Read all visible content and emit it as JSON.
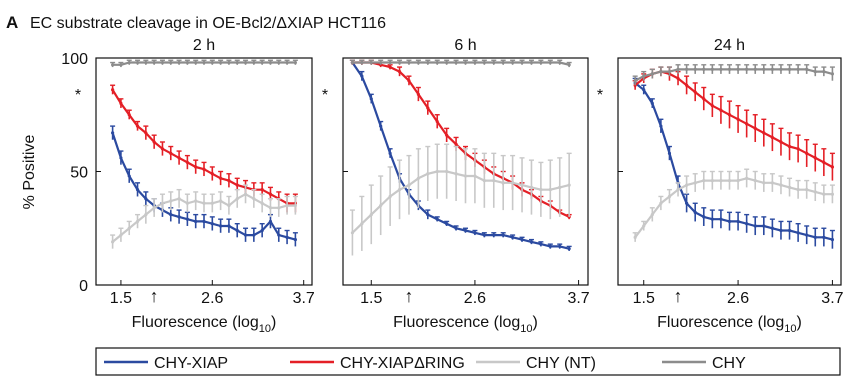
{
  "figure": {
    "panel_letter": "A",
    "title": "EC substrate cleavage in OE-Bcl2/ΔXIAP HCT116",
    "ylabel": "% Positive",
    "xlabel_main": "Fluorescence (log",
    "xlabel_sub": "10",
    "xlabel_close": ")",
    "asterisk": "*",
    "arrow_symbol": "↑",
    "arrow_at": 1.9
  },
  "legend": {
    "position": "bottom",
    "items": [
      {
        "label": "CHY-XIAP",
        "color": "#2b4aa0"
      },
      {
        "label": "CHY-XIAPΔRING",
        "color": "#e41f26"
      },
      {
        "label": "CHY (NT)",
        "color": "#c8c8c8"
      },
      {
        "label": "CHY",
        "color": "#8c8c8c"
      }
    ]
  },
  "chart_data": [
    {
      "type": "line",
      "title": "2 h",
      "xlabel": "Fluorescence (log10)",
      "ylabel": "% Positive",
      "xlim": [
        1.2,
        3.8
      ],
      "ylim": [
        0,
        100
      ],
      "xticks": [
        1.5,
        2.6,
        3.7
      ],
      "xtick_labels": [
        "1.5",
        "2.6",
        "3.7"
      ],
      "yticks": [
        0,
        50,
        100
      ],
      "ytick_labels": [
        "0",
        "50",
        "100"
      ],
      "grid": false,
      "x": [
        1.4,
        1.5,
        1.6,
        1.7,
        1.8,
        1.9,
        2.0,
        2.1,
        2.2,
        2.3,
        2.4,
        2.5,
        2.6,
        2.7,
        2.8,
        2.9,
        3.0,
        3.1,
        3.2,
        3.3,
        3.4,
        3.5,
        3.6
      ],
      "series": [
        {
          "name": "CHY-XIAP",
          "color": "#2b4aa0",
          "values": [
            67,
            56,
            48,
            42,
            38,
            35,
            33,
            31,
            30,
            29,
            28,
            28,
            27,
            26,
            26,
            24,
            22,
            22,
            24,
            28,
            22,
            21,
            20
          ],
          "errors": [
            3,
            3,
            3,
            3,
            3,
            3,
            3,
            3,
            3,
            3,
            3,
            3,
            3,
            3,
            3,
            3,
            3,
            3,
            3,
            3,
            3,
            3,
            3
          ]
        },
        {
          "name": "CHY-XIAPΔRING",
          "color": "#e41f26",
          "values": [
            86,
            80,
            75,
            70,
            67,
            63,
            60,
            58,
            56,
            54,
            52,
            51,
            49,
            47,
            46,
            44,
            43,
            42,
            42,
            40,
            38,
            36,
            36
          ],
          "errors": [
            2,
            2,
            2,
            2,
            3,
            3,
            3,
            3,
            3,
            3,
            3,
            3,
            3,
            3,
            3,
            3,
            3,
            3,
            3,
            3,
            3,
            4,
            4
          ]
        },
        {
          "name": "CHY (NT)",
          "color": "#c8c8c8",
          "values": [
            19,
            22,
            25,
            28,
            31,
            34,
            36,
            37,
            38,
            36,
            37,
            36,
            36,
            37,
            35,
            38,
            40,
            38,
            36,
            34,
            34,
            35,
            35
          ],
          "errors": [
            3,
            3,
            3,
            3,
            4,
            4,
            4,
            4,
            4,
            4,
            4,
            4,
            4,
            4,
            4,
            4,
            4,
            4,
            4,
            4,
            4,
            4,
            4
          ]
        },
        {
          "name": "CHY",
          "color": "#8c8c8c",
          "values": [
            97,
            97,
            98,
            98,
            98,
            98,
            98,
            98,
            98,
            98,
            98,
            98,
            98,
            98,
            98,
            98,
            98,
            98,
            98,
            98,
            98,
            98,
            98
          ],
          "errors": [
            1,
            1,
            1,
            1,
            1,
            1,
            1,
            1,
            1,
            1,
            1,
            1,
            1,
            1,
            1,
            1,
            1,
            1,
            1,
            1,
            1,
            1,
            1
          ]
        }
      ]
    },
    {
      "type": "line",
      "title": "6 h",
      "xlabel": "Fluorescence (log10)",
      "ylabel": "",
      "xlim": [
        1.2,
        3.8
      ],
      "ylim": [
        0,
        100
      ],
      "xticks": [
        1.5,
        2.6,
        3.7
      ],
      "xtick_labels": [
        "1.5",
        "2.6",
        "3.7"
      ],
      "yticks": [
        0,
        50,
        100
      ],
      "ytick_labels": [],
      "grid": false,
      "x": [
        1.3,
        1.4,
        1.5,
        1.6,
        1.7,
        1.8,
        1.9,
        2.0,
        2.1,
        2.2,
        2.3,
        2.4,
        2.5,
        2.6,
        2.7,
        2.8,
        2.9,
        3.0,
        3.1,
        3.2,
        3.3,
        3.4,
        3.5,
        3.6
      ],
      "series": [
        {
          "name": "CHY-XIAP",
          "color": "#2b4aa0",
          "values": [
            98,
            92,
            82,
            70,
            58,
            47,
            40,
            35,
            31,
            29,
            27,
            25,
            24,
            23,
            22,
            22,
            22,
            21,
            20,
            19,
            18,
            17,
            17,
            16
          ],
          "errors": [
            1,
            2,
            2,
            2,
            2,
            2,
            2,
            2,
            2,
            1,
            1,
            1,
            1,
            1,
            1,
            1,
            1,
            1,
            1,
            1,
            1,
            1,
            1,
            1
          ]
        },
        {
          "name": "CHY-XIAPΔRING",
          "color": "#e41f26",
          "values": [
            98,
            98,
            98,
            97,
            96,
            94,
            90,
            84,
            78,
            72,
            66,
            62,
            58,
            55,
            52,
            49,
            47,
            45,
            42,
            40,
            37,
            35,
            32,
            30
          ],
          "errors": [
            1,
            1,
            1,
            1,
            1,
            2,
            2,
            3,
            3,
            3,
            3,
            3,
            3,
            3,
            3,
            3,
            3,
            3,
            3,
            2,
            2,
            2,
            1,
            1
          ]
        },
        {
          "name": "CHY (NT)",
          "color": "#c8c8c8",
          "values": [
            23,
            27,
            31,
            35,
            39,
            42,
            44,
            47,
            49,
            50,
            50,
            49,
            48,
            48,
            46,
            46,
            45,
            45,
            44,
            43,
            42,
            42,
            43,
            44
          ],
          "errors": [
            10,
            12,
            13,
            13,
            13,
            13,
            13,
            13,
            12,
            12,
            12,
            12,
            12,
            12,
            12,
            12,
            12,
            12,
            12,
            12,
            12,
            13,
            13,
            14
          ]
        },
        {
          "name": "CHY",
          "color": "#8c8c8c",
          "values": [
            98,
            98,
            98,
            98,
            98,
            98,
            98,
            98,
            98,
            98,
            98,
            98,
            98,
            98,
            98,
            98,
            98,
            98,
            98,
            98,
            98,
            98,
            98,
            97
          ],
          "errors": [
            1,
            1,
            1,
            1,
            1,
            1,
            1,
            1,
            1,
            1,
            1,
            1,
            1,
            1,
            1,
            1,
            1,
            1,
            1,
            1,
            1,
            1,
            1,
            1
          ]
        }
      ]
    },
    {
      "type": "line",
      "title": "24 h",
      "xlabel": "Fluorescence (log10)",
      "ylabel": "",
      "xlim": [
        1.2,
        3.8
      ],
      "ylim": [
        0,
        100
      ],
      "xticks": [
        1.5,
        2.6,
        3.7
      ],
      "xtick_labels": [
        "1.5",
        "2.6",
        "3.7"
      ],
      "yticks": [
        0,
        50,
        100
      ],
      "ytick_labels": [],
      "grid": false,
      "x": [
        1.4,
        1.5,
        1.6,
        1.7,
        1.8,
        1.9,
        2.0,
        2.1,
        2.2,
        2.3,
        2.4,
        2.5,
        2.6,
        2.7,
        2.8,
        2.9,
        3.0,
        3.1,
        3.2,
        3.3,
        3.4,
        3.5,
        3.6,
        3.7
      ],
      "series": [
        {
          "name": "CHY-XIAP",
          "color": "#2b4aa0",
          "values": [
            89,
            86,
            80,
            70,
            58,
            45,
            36,
            32,
            30,
            29,
            29,
            28,
            28,
            27,
            26,
            26,
            25,
            24,
            24,
            23,
            22,
            21,
            21,
            20
          ],
          "errors": [
            2,
            2,
            2,
            3,
            3,
            3,
            4,
            4,
            4,
            4,
            4,
            4,
            4,
            4,
            4,
            4,
            4,
            4,
            4,
            4,
            4,
            4,
            4,
            4
          ]
        },
        {
          "name": "CHY-XIAPΔRING",
          "color": "#e41f26",
          "values": [
            88,
            91,
            93,
            94,
            93,
            91,
            88,
            85,
            82,
            79,
            77,
            75,
            73,
            71,
            69,
            67,
            65,
            63,
            61,
            60,
            58,
            56,
            54,
            52
          ],
          "errors": [
            2,
            2,
            2,
            2,
            3,
            3,
            4,
            4,
            5,
            5,
            6,
            6,
            6,
            6,
            6,
            6,
            6,
            6,
            6,
            6,
            6,
            6,
            6,
            6
          ]
        },
        {
          "name": "CHY (NT)",
          "color": "#c8c8c8",
          "values": [
            21,
            26,
            31,
            36,
            39,
            42,
            44,
            45,
            46,
            46,
            46,
            46,
            46,
            47,
            46,
            45,
            45,
            44,
            43,
            42,
            42,
            41,
            40,
            40
          ],
          "errors": [
            2,
            2,
            3,
            3,
            3,
            3,
            4,
            4,
            4,
            4,
            4,
            4,
            4,
            4,
            4,
            4,
            4,
            4,
            4,
            4,
            4,
            4,
            4,
            4
          ]
        },
        {
          "name": "CHY",
          "color": "#8c8c8c",
          "values": [
            90,
            92,
            93,
            94,
            94,
            95,
            95,
            95,
            95,
            95,
            95,
            95,
            95,
            95,
            95,
            95,
            95,
            95,
            95,
            95,
            95,
            94,
            94,
            93
          ],
          "errors": [
            2,
            2,
            2,
            2,
            2,
            2,
            2,
            2,
            2,
            2,
            2,
            2,
            2,
            2,
            2,
            2,
            2,
            2,
            2,
            2,
            2,
            2,
            2,
            3
          ]
        }
      ]
    }
  ]
}
